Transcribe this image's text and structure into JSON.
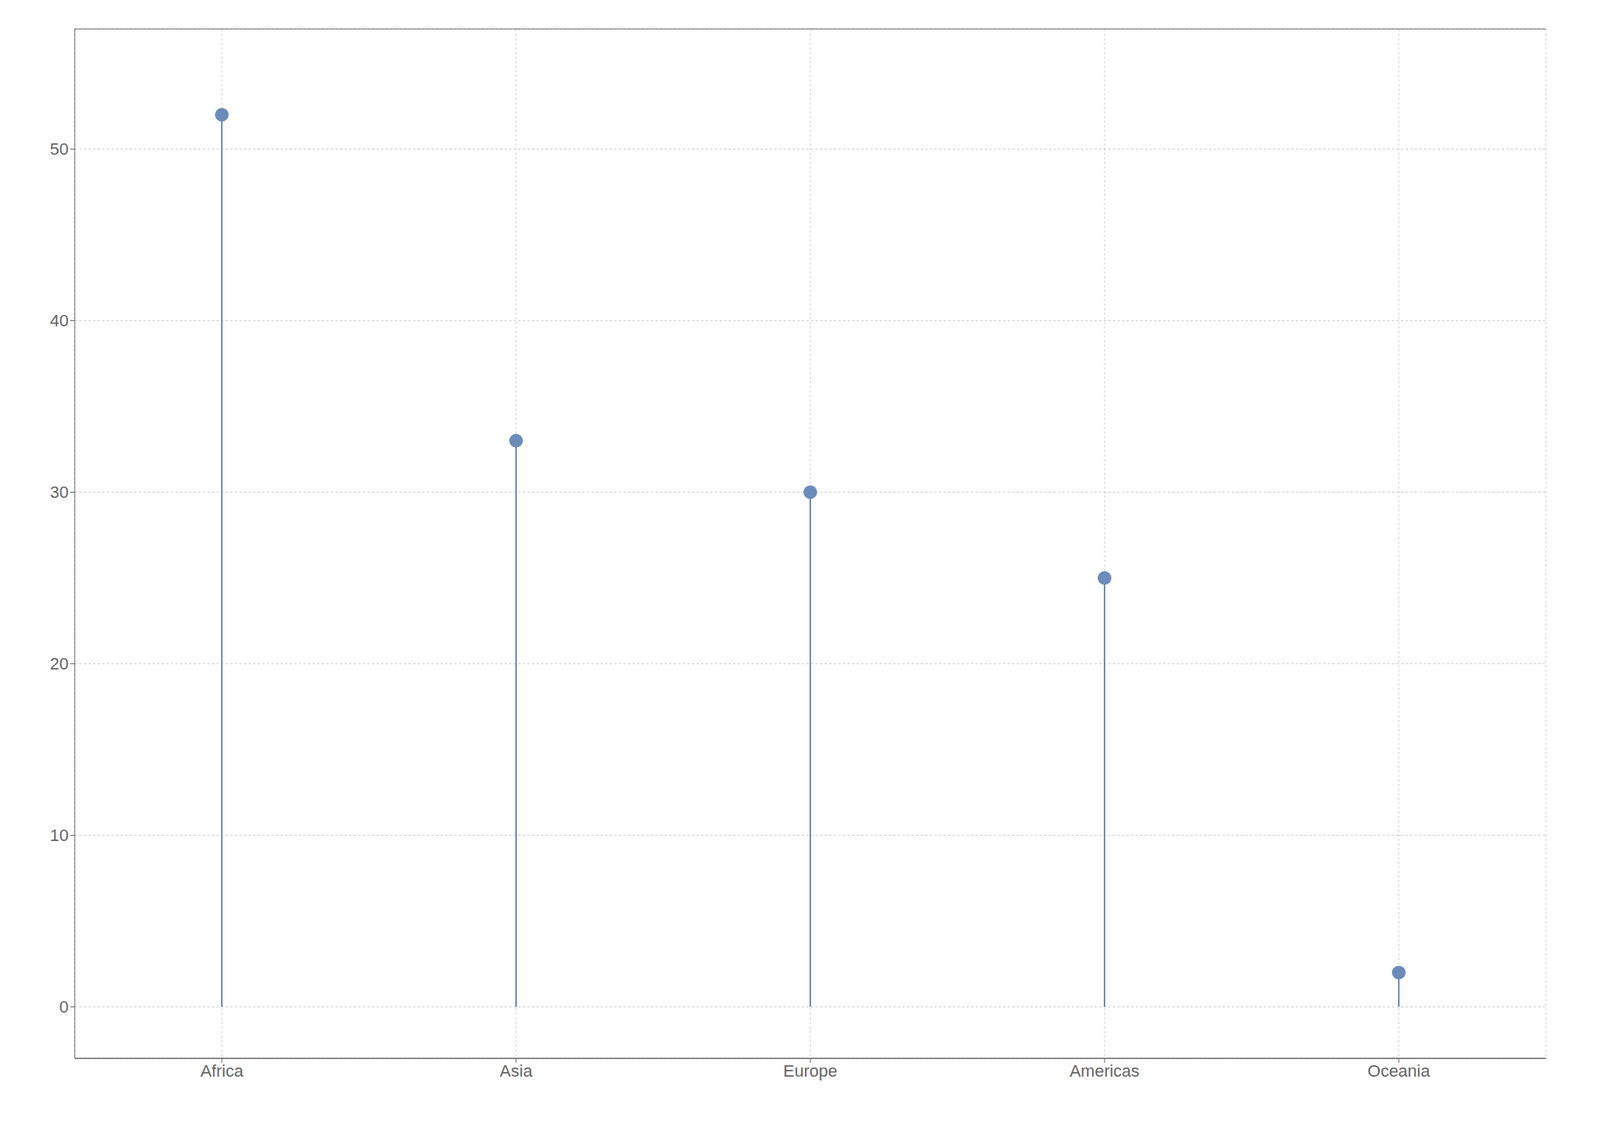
{
  "chart_data": {
    "type": "lollipop",
    "categories": [
      "Africa",
      "Asia",
      "Europe",
      "Americas",
      "Oceania"
    ],
    "values": [
      52,
      33,
      30,
      25,
      2
    ],
    "color": "#6b8cba",
    "ylim": [
      -3,
      57
    ],
    "yticks": [
      0,
      10,
      20,
      30,
      40,
      50
    ],
    "grid": true
  }
}
